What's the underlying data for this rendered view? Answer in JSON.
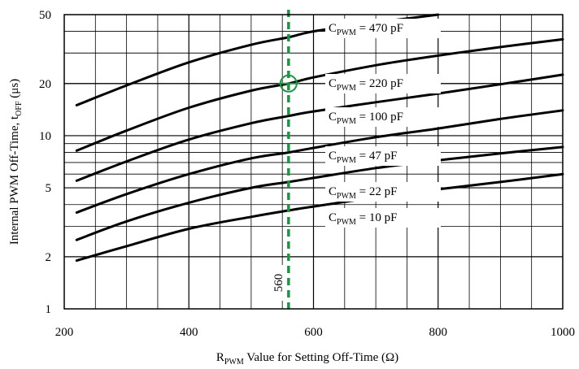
{
  "chart_data": {
    "type": "line",
    "x_scale": "linear",
    "y_scale": "log",
    "xlim": [
      200,
      1000
    ],
    "ylim": [
      1,
      50
    ],
    "grid": true,
    "xticks": [
      200,
      400,
      600,
      800,
      1000
    ],
    "yticks": [
      1,
      2,
      5,
      10,
      20,
      50
    ],
    "xlabel": {
      "main": "R",
      "sub": "PWM",
      "rest": " Value for Setting Off-Time (Ω)"
    },
    "ylabel": {
      "main": "Internal PWM Off-Time, t",
      "sub": "OFF",
      "rest": " (μs)"
    },
    "series": [
      {
        "name": "CPWM = 470 pF",
        "label_main": "C",
        "label_sub": "PWM",
        "label_rest": " = 470 pF",
        "x": [
          220,
          300,
          400,
          500,
          560,
          600,
          700,
          800
        ],
        "y": [
          15,
          19.5,
          26.5,
          33.5,
          37,
          40,
          45,
          50
        ]
      },
      {
        "name": "CPWM = 220 pF",
        "label_main": "C",
        "label_sub": "PWM",
        "label_rest": " = 220 pF",
        "x": [
          220,
          300,
          400,
          500,
          560,
          600,
          700,
          800,
          900,
          1000
        ],
        "y": [
          8.2,
          10.7,
          14.5,
          18.2,
          20,
          21.7,
          25.5,
          29,
          32.5,
          36
        ]
      },
      {
        "name": "CPWM = 100 pF",
        "label_main": "C",
        "label_sub": "PWM",
        "label_rest": " = 100 pF",
        "x": [
          220,
          300,
          400,
          500,
          560,
          600,
          700,
          800,
          900,
          1000
        ],
        "y": [
          5.5,
          7.1,
          9.5,
          11.8,
          13,
          13.8,
          15.6,
          17.5,
          19.8,
          22.5
        ]
      },
      {
        "name": "CPWM = 47 pF",
        "label_main": "C",
        "label_sub": "PWM",
        "label_rest": " = 47 pF",
        "x": [
          220,
          300,
          400,
          500,
          560,
          600,
          700,
          800,
          900,
          1000
        ],
        "y": [
          3.6,
          4.6,
          6.0,
          7.4,
          8.0,
          8.5,
          9.8,
          11.0,
          12.5,
          14.0
        ]
      },
      {
        "name": "CPWM = 22 pF",
        "label_main": "C",
        "label_sub": "PWM",
        "label_rest": " = 22 pF",
        "x": [
          220,
          300,
          400,
          500,
          560,
          600,
          700,
          800,
          900,
          1000
        ],
        "y": [
          2.5,
          3.2,
          4.1,
          5.0,
          5.4,
          5.7,
          6.5,
          7.2,
          7.9,
          8.6
        ]
      },
      {
        "name": "CPWM = 10 pF",
        "label_main": "C",
        "label_sub": "PWM",
        "label_rest": " = 10 pF",
        "x": [
          220,
          300,
          400,
          500,
          560,
          600,
          700,
          800,
          900,
          1000
        ],
        "y": [
          1.9,
          2.3,
          2.9,
          3.4,
          3.7,
          3.9,
          4.4,
          4.9,
          5.4,
          6.0
        ]
      }
    ],
    "marker": {
      "x": 560,
      "label": "560",
      "point_y": 20,
      "color": "#1a9641"
    }
  }
}
